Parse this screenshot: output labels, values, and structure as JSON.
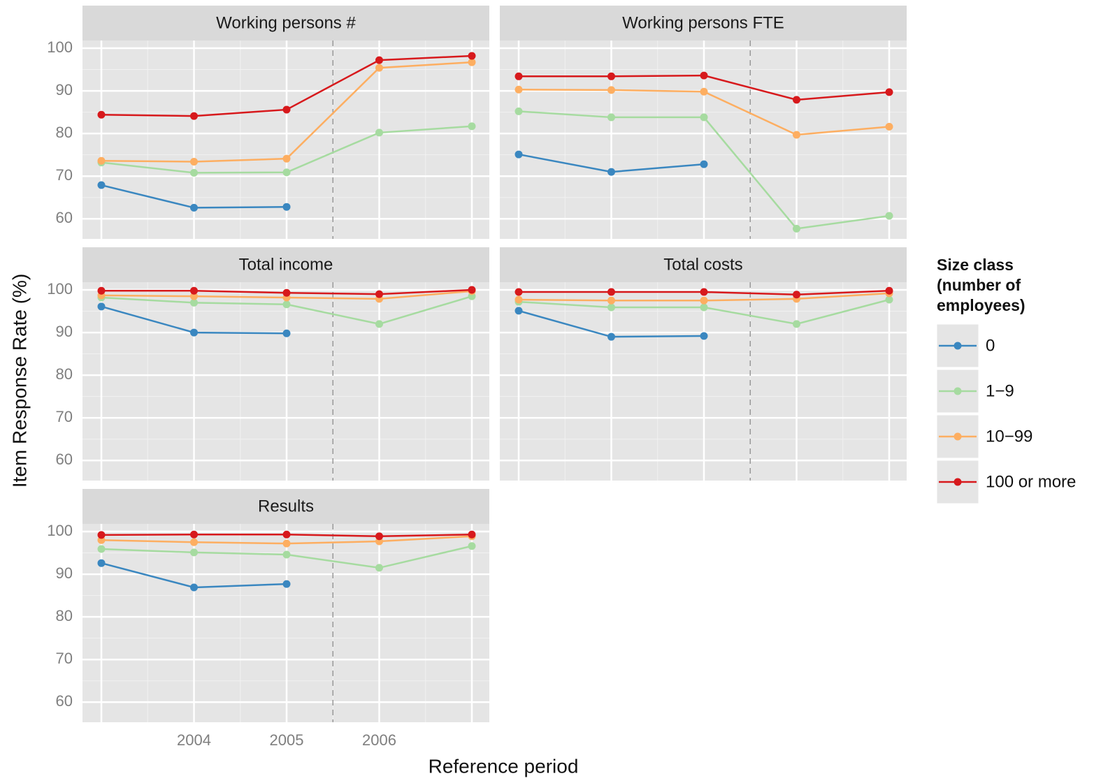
{
  "chart_data": {
    "type": "line",
    "xlabel": "Reference period",
    "ylabel": "Item Response Rate (%)",
    "legend_title": [
      "Size class",
      "(number of",
      "employees)"
    ],
    "categories": [
      null,
      "2004",
      "2005",
      "2006",
      null
    ],
    "ylim": [
      55.3,
      101.8
    ],
    "yticks": [
      60,
      70,
      80,
      90,
      100
    ],
    "series": [
      {
        "name": "0",
        "color": "#3a87c0"
      },
      {
        "name": "1−9",
        "color": "#a6dba0"
      },
      {
        "name": "10−99",
        "color": "#fdae61"
      },
      {
        "name": "100 or more",
        "color": "#d7191c"
      }
    ],
    "facets": [
      {
        "title": "Working persons #",
        "values": [
          [
            67.9,
            62.6,
            62.8,
            null,
            null
          ],
          [
            73.2,
            70.8,
            70.9,
            80.2,
            81.7
          ],
          [
            73.6,
            73.4,
            74.1,
            95.4,
            96.7
          ],
          [
            84.4,
            84.1,
            85.6,
            97.2,
            98.2
          ]
        ]
      },
      {
        "title": "Working persons FTE",
        "values": [
          [
            75.1,
            71.0,
            72.8,
            null,
            null
          ],
          [
            85.2,
            83.8,
            83.8,
            57.7,
            60.7
          ],
          [
            90.3,
            90.2,
            89.8,
            79.7,
            81.6
          ],
          [
            93.4,
            93.4,
            93.6,
            87.9,
            89.7
          ]
        ]
      },
      {
        "title": "Total income",
        "values": [
          [
            96.1,
            90.0,
            89.8,
            null,
            null
          ],
          [
            98.2,
            97.0,
            96.6,
            92.0,
            98.5
          ],
          [
            98.7,
            98.5,
            98.2,
            97.9,
            99.7
          ],
          [
            99.8,
            99.8,
            99.3,
            99.0,
            100
          ]
        ]
      },
      {
        "title": "Total costs",
        "values": [
          [
            95.1,
            89.0,
            89.2,
            null,
            null
          ],
          [
            97.2,
            95.9,
            95.9,
            92.0,
            97.7
          ],
          [
            97.7,
            97.5,
            97.5,
            97.9,
            99.2
          ],
          [
            99.5,
            99.5,
            99.5,
            98.9,
            99.8
          ]
        ]
      },
      {
        "title": "Results",
        "values": [
          [
            92.6,
            86.9,
            87.7,
            null,
            null
          ],
          [
            95.9,
            95.1,
            94.6,
            91.5,
            96.6
          ],
          [
            98.0,
            97.5,
            97.2,
            97.7,
            98.9
          ],
          [
            99.2,
            99.3,
            99.3,
            98.9,
            99.3
          ]
        ]
      }
    ]
  }
}
